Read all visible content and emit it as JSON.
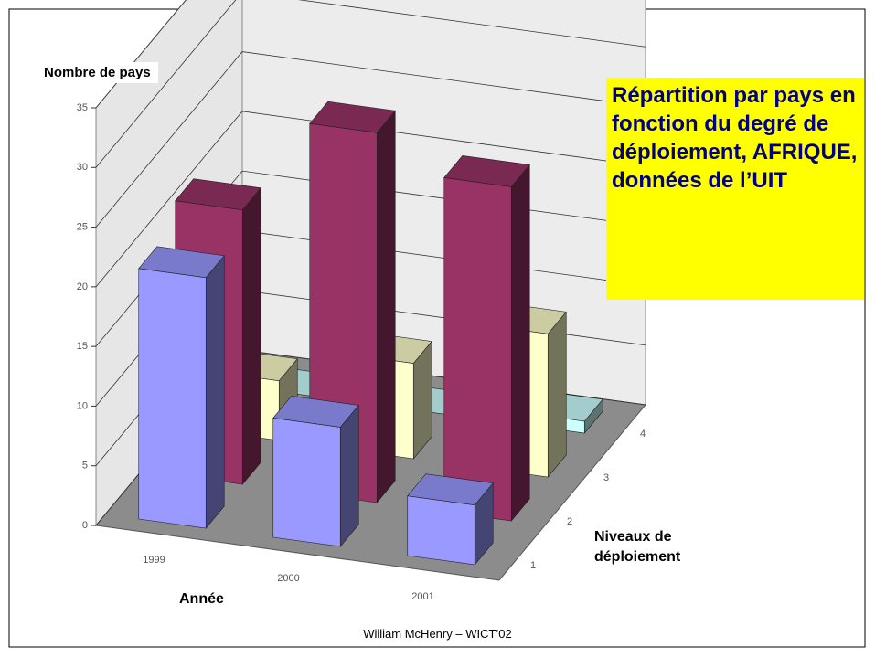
{
  "chart_data": {
    "type": "bar3d",
    "title": "Répartition par pays en fonction du degré de déploiement, AFRIQUE, données de l’UIT",
    "y_label": "Nombre de pays",
    "x_label": "Année",
    "z_label": "Niveaux de déploiement",
    "footer": "William McHenry – WICT’02",
    "categories": [
      "1999",
      "2000",
      "2001"
    ],
    "zcategories": [
      "1",
      "2",
      "3",
      "4"
    ],
    "series": [
      {
        "color": "#9999ff",
        "values": [
          21,
          10,
          5
        ]
      },
      {
        "color": "#993366",
        "values": [
          23,
          31,
          28
        ]
      },
      {
        "color": "#ffffcc",
        "values": [
          5,
          8,
          12
        ]
      },
      {
        "color": "#ccffff",
        "values": [
          0,
          0,
          1
        ]
      }
    ],
    "ylim": [
      0,
      35
    ],
    "yticks": [
      0,
      5,
      10,
      15,
      20,
      25,
      30,
      35
    ],
    "grid": true
  }
}
